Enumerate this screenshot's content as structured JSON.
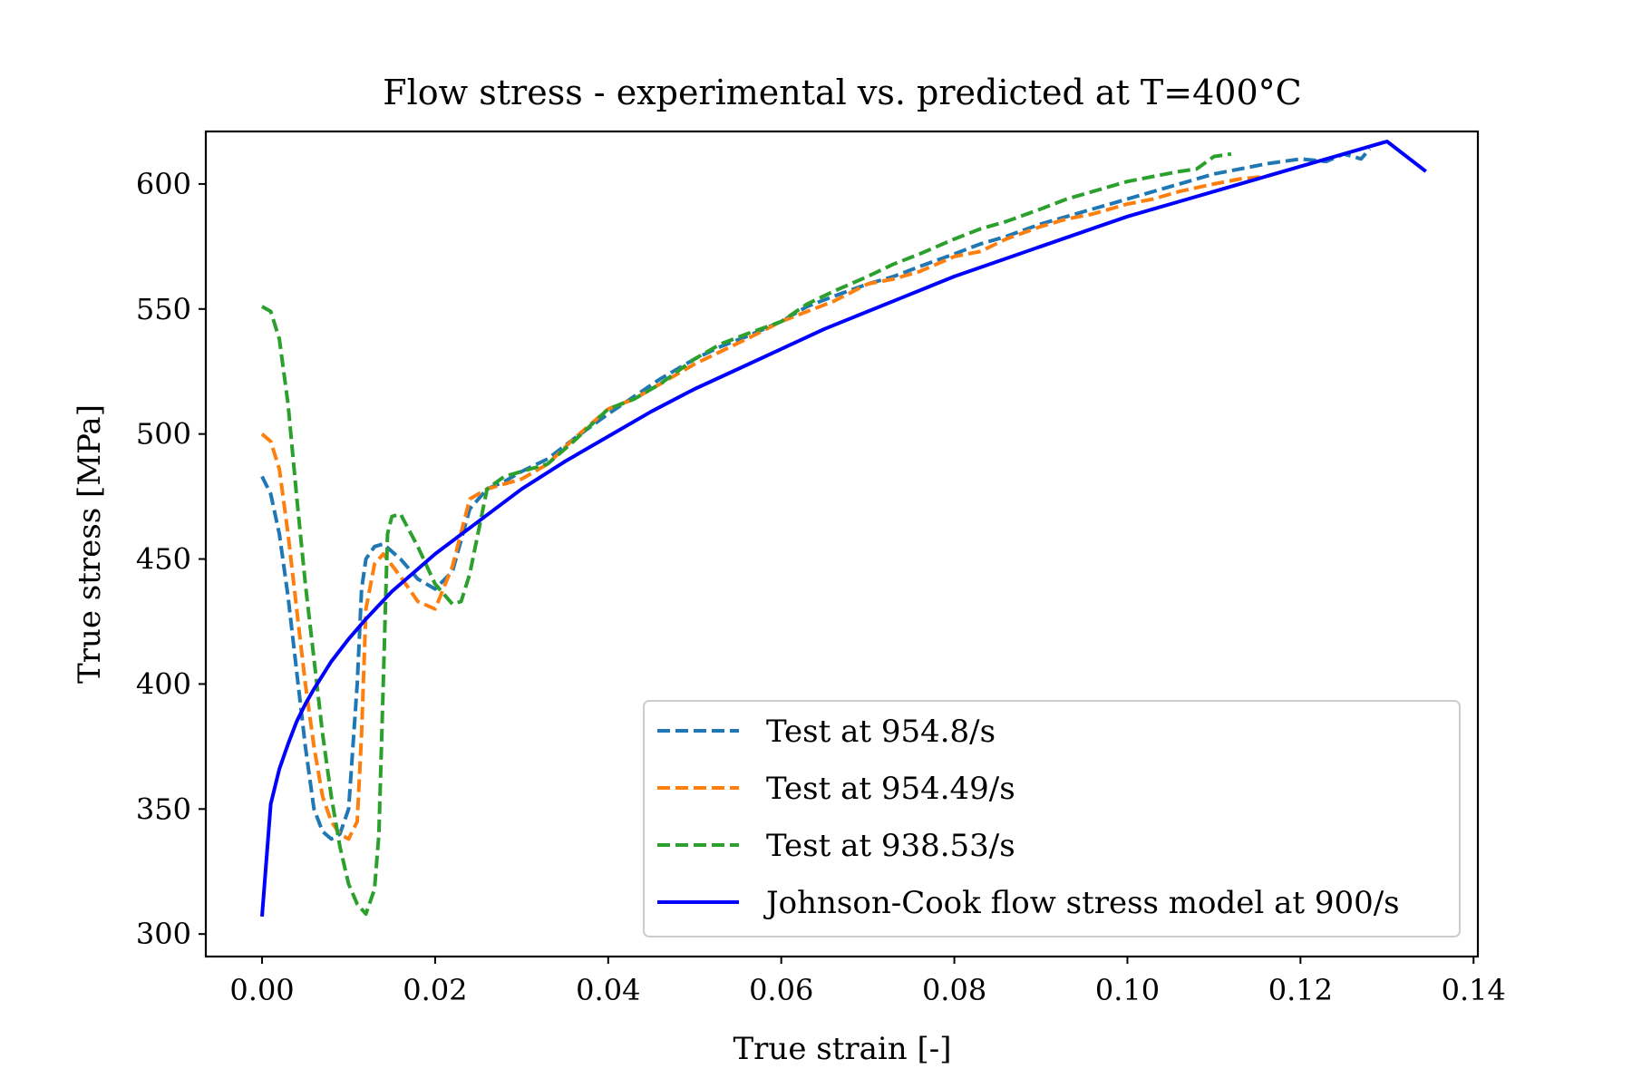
{
  "chart_data": {
    "type": "line",
    "title": "Flow stress - experimental vs. predicted at T=400°C",
    "xlabel": "True strain [-]",
    "ylabel": "True stress [MPa]",
    "xlim": [
      -0.0065,
      0.1405
    ],
    "ylim": [
      291,
      621
    ],
    "xticks": [
      0.0,
      0.02,
      0.04,
      0.06,
      0.08,
      0.1,
      0.12,
      0.14
    ],
    "xtick_labels": [
      "0.00",
      "0.02",
      "0.04",
      "0.06",
      "0.08",
      "0.10",
      "0.12",
      "0.14"
    ],
    "yticks": [
      300,
      350,
      400,
      450,
      500,
      550,
      600
    ],
    "ytick_labels": [
      "300",
      "350",
      "400",
      "450",
      "500",
      "550",
      "600"
    ],
    "grid": false,
    "legend_position": "lower-right",
    "series": [
      {
        "name": "Test at 954.8/s",
        "color": "#1f77b4",
        "style": "dashed",
        "x": [
          0.0,
          0.001,
          0.002,
          0.003,
          0.004,
          0.005,
          0.006,
          0.007,
          0.008,
          0.009,
          0.01,
          0.011,
          0.0115,
          0.012,
          0.013,
          0.014,
          0.016,
          0.018,
          0.02,
          0.022,
          0.024,
          0.026,
          0.028,
          0.03,
          0.033,
          0.036,
          0.04,
          0.043,
          0.046,
          0.05,
          0.053,
          0.056,
          0.06,
          0.063,
          0.066,
          0.07,
          0.073,
          0.076,
          0.08,
          0.083,
          0.086,
          0.09,
          0.093,
          0.096,
          0.1,
          0.103,
          0.106,
          0.11,
          0.113,
          0.116,
          0.12,
          0.123,
          0.125,
          0.127,
          0.128
        ],
        "y": [
          483,
          476,
          460,
          435,
          405,
          375,
          350,
          341,
          338,
          340,
          350,
          400,
          438,
          450,
          455,
          456,
          450,
          442,
          438,
          445,
          470,
          478,
          481,
          485,
          490,
          498,
          508,
          515,
          522,
          530,
          535,
          539,
          545,
          551,
          555,
          560,
          563,
          567,
          572,
          576,
          579,
          584,
          587,
          590,
          594,
          597,
          600,
          604,
          606,
          608,
          610,
          609,
          612,
          610,
          614
        ]
      },
      {
        "name": "Test at 954.49/s",
        "color": "#ff7f0e",
        "style": "dashed",
        "x": [
          0.0,
          0.001,
          0.002,
          0.003,
          0.004,
          0.005,
          0.006,
          0.007,
          0.008,
          0.009,
          0.01,
          0.011,
          0.0115,
          0.012,
          0.013,
          0.014,
          0.016,
          0.018,
          0.02,
          0.022,
          0.024,
          0.026,
          0.028,
          0.03,
          0.033,
          0.036,
          0.04,
          0.043,
          0.046,
          0.05,
          0.053,
          0.056,
          0.06,
          0.063,
          0.066,
          0.07,
          0.073,
          0.076,
          0.08,
          0.083,
          0.086,
          0.09,
          0.093,
          0.096,
          0.1,
          0.103,
          0.106,
          0.11,
          0.113,
          0.116,
          0.118
        ],
        "y": [
          500,
          497,
          486,
          460,
          430,
          400,
          375,
          355,
          345,
          340,
          338,
          345,
          380,
          430,
          448,
          452,
          443,
          433,
          430,
          447,
          474,
          478,
          480,
          482,
          488,
          498,
          510,
          514,
          520,
          528,
          533,
          538,
          545,
          549,
          553,
          560,
          562,
          565,
          571,
          573,
          578,
          583,
          586,
          588,
          592,
          594,
          597,
          600,
          602,
          603,
          605
        ]
      },
      {
        "name": "Test at 938.53/s",
        "color": "#2ca02c",
        "style": "dashed",
        "x": [
          0.0,
          0.001,
          0.002,
          0.003,
          0.004,
          0.005,
          0.006,
          0.007,
          0.008,
          0.009,
          0.01,
          0.011,
          0.012,
          0.013,
          0.0135,
          0.014,
          0.0145,
          0.015,
          0.016,
          0.018,
          0.02,
          0.022,
          0.023,
          0.024,
          0.026,
          0.028,
          0.03,
          0.033,
          0.036,
          0.04,
          0.043,
          0.046,
          0.05,
          0.053,
          0.056,
          0.06,
          0.063,
          0.066,
          0.07,
          0.073,
          0.076,
          0.08,
          0.083,
          0.086,
          0.09,
          0.093,
          0.096,
          0.1,
          0.103,
          0.106,
          0.108,
          0.11,
          0.112
        ],
        "y": [
          551,
          549,
          538,
          512,
          475,
          440,
          410,
          380,
          355,
          335,
          320,
          312,
          308,
          318,
          340,
          400,
          460,
          467,
          468,
          455,
          440,
          432,
          433,
          444,
          478,
          483,
          485,
          488,
          497,
          510,
          514,
          520,
          530,
          536,
          540,
          545,
          552,
          557,
          563,
          568,
          572,
          578,
          582,
          585,
          590,
          594,
          597,
          601,
          603,
          605,
          606,
          611,
          612
        ]
      },
      {
        "name": "Johnson-Cook flow stress model at 900/s",
        "color": "#0000ff",
        "style": "solid",
        "x": [
          0.0,
          0.001,
          0.002,
          0.003,
          0.004,
          0.005,
          0.006,
          0.008,
          0.01,
          0.012,
          0.015,
          0.018,
          0.02,
          0.025,
          0.03,
          0.035,
          0.04,
          0.045,
          0.05,
          0.055,
          0.06,
          0.065,
          0.07,
          0.075,
          0.08,
          0.085,
          0.09,
          0.095,
          0.1,
          0.105,
          0.11,
          0.115,
          0.12,
          0.125,
          0.13,
          0.1345
        ],
        "y": [
          307,
          352,
          366,
          376,
          385,
          392,
          398,
          409,
          418,
          426,
          437,
          446,
          452,
          465,
          478,
          489,
          499,
          509,
          518,
          526,
          534,
          542,
          549,
          556,
          563,
          569,
          575,
          581,
          587,
          592,
          597,
          602,
          607,
          612,
          617,
          605
        ]
      }
    ]
  }
}
